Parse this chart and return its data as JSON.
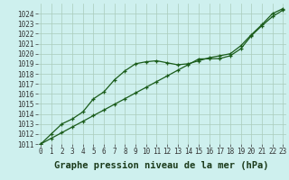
{
  "title": "Graphe pression niveau de la mer (hPa)",
  "xlabel_hours": [
    0,
    1,
    2,
    3,
    4,
    5,
    6,
    7,
    8,
    9,
    10,
    11,
    12,
    13,
    14,
    15,
    16,
    17,
    18,
    19,
    20,
    21,
    22,
    23
  ],
  "series1_linear": [
    1011.0,
    1011.57,
    1012.13,
    1012.7,
    1013.26,
    1013.83,
    1014.39,
    1014.96,
    1015.52,
    1016.09,
    1016.65,
    1017.22,
    1017.78,
    1018.35,
    1018.91,
    1019.48,
    1019.5,
    1019.52,
    1019.8,
    1020.5,
    1021.8,
    1022.8,
    1023.7,
    1024.35
  ],
  "series2_curved": [
    1011.0,
    1012.0,
    1013.0,
    1013.5,
    1014.2,
    1015.5,
    1016.2,
    1017.4,
    1018.3,
    1019.0,
    1019.2,
    1019.3,
    1019.1,
    1018.9,
    1019.0,
    1019.3,
    1019.6,
    1019.8,
    1020.0,
    1020.8,
    1021.9,
    1022.9,
    1024.0,
    1024.5
  ],
  "ylim_min": 1011,
  "ylim_max": 1025,
  "yticks": [
    1011,
    1012,
    1013,
    1014,
    1015,
    1016,
    1017,
    1018,
    1019,
    1020,
    1021,
    1022,
    1023,
    1024
  ],
  "line_color": "#1a5c1a",
  "bg_color": "#cef0ee",
  "grid_color": "#aaccbb",
  "title_fontsize": 7.5,
  "tick_fontsize": 5.5,
  "marker_size": 3.5,
  "line_width": 0.9
}
